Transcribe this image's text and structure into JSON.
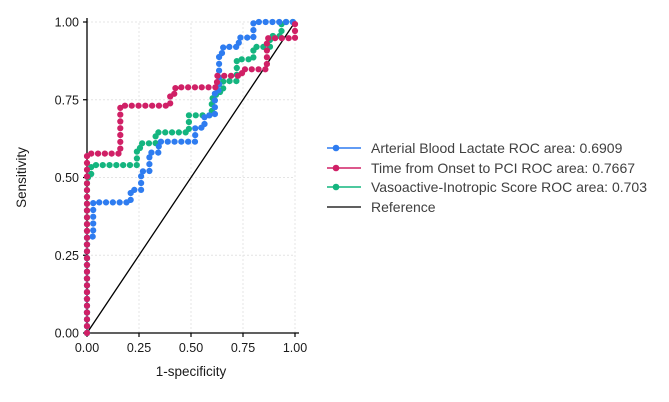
{
  "figure": {
    "background": "#ffffff",
    "text_color": "#404040",
    "axis_color": "#000000",
    "grid_color": "#e4e4e4"
  },
  "chart_data": {
    "type": "line",
    "subtype": "roc_step_curves",
    "title": "",
    "xlabel": "1-specificity",
    "ylabel": "Sensitivity",
    "xlim": [
      0,
      1
    ],
    "ylim": [
      0,
      1
    ],
    "xtick_values": [
      0,
      0.25,
      0.5,
      0.75,
      1
    ],
    "ytick_values": [
      0,
      0.25,
      0.5,
      0.75,
      1
    ],
    "xtick_labels": [
      "0.00",
      "0.25",
      "0.50",
      "0.75",
      "1.00"
    ],
    "ytick_labels": [
      "0.00",
      "0.25",
      "0.50",
      "0.75",
      "1.00"
    ],
    "grid": true,
    "legend_position": "right",
    "marker_style": "dotted-step-line",
    "series": [
      {
        "name": "Arterial Blood Lactate",
        "roc_area": 0.6909,
        "color": "#2E7CF0",
        "points": [
          [
            0,
            0
          ],
          [
            0,
            0.31
          ],
          [
            0.03,
            0.31
          ],
          [
            0.03,
            0.42
          ],
          [
            0.21,
            0.42
          ],
          [
            0.21,
            0.46
          ],
          [
            0.26,
            0.46
          ],
          [
            0.26,
            0.52
          ],
          [
            0.3,
            0.52
          ],
          [
            0.3,
            0.58
          ],
          [
            0.345,
            0.58
          ],
          [
            0.345,
            0.615
          ],
          [
            0.52,
            0.615
          ],
          [
            0.52,
            0.66
          ],
          [
            0.565,
            0.66
          ],
          [
            0.565,
            0.7
          ],
          [
            0.615,
            0.7
          ],
          [
            0.615,
            0.78
          ],
          [
            0.635,
            0.78
          ],
          [
            0.635,
            0.9
          ],
          [
            0.655,
            0.9
          ],
          [
            0.655,
            0.92
          ],
          [
            0.73,
            0.92
          ],
          [
            0.73,
            0.95
          ],
          [
            0.8,
            0.95
          ],
          [
            0.8,
            1
          ],
          [
            1,
            1
          ]
        ]
      },
      {
        "name": "Time from Onset to PCI",
        "roc_area": 0.7667,
        "color": "#D02066",
        "points": [
          [
            0,
            0
          ],
          [
            0,
            0.577
          ],
          [
            0.16,
            0.577
          ],
          [
            0.16,
            0.731
          ],
          [
            0.4,
            0.731
          ],
          [
            0.4,
            0.769
          ],
          [
            0.425,
            0.769
          ],
          [
            0.425,
            0.79
          ],
          [
            0.625,
            0.79
          ],
          [
            0.625,
            0.827
          ],
          [
            0.745,
            0.827
          ],
          [
            0.745,
            0.848
          ],
          [
            0.865,
            0.848
          ],
          [
            0.865,
            0.948
          ],
          [
            1,
            0.948
          ],
          [
            1,
            1
          ]
        ]
      },
      {
        "name": "Vasoactive-Inotropic Score",
        "roc_area": 0.703,
        "color": "#14B57F",
        "points": [
          [
            0,
            0
          ],
          [
            0,
            0.5
          ],
          [
            0.02,
            0.5
          ],
          [
            0.02,
            0.54
          ],
          [
            0.24,
            0.54
          ],
          [
            0.24,
            0.585
          ],
          [
            0.255,
            0.585
          ],
          [
            0.255,
            0.61
          ],
          [
            0.33,
            0.61
          ],
          [
            0.33,
            0.645
          ],
          [
            0.49,
            0.645
          ],
          [
            0.49,
            0.7
          ],
          [
            0.6,
            0.7
          ],
          [
            0.6,
            0.755
          ],
          [
            0.62,
            0.755
          ],
          [
            0.62,
            0.775
          ],
          [
            0.655,
            0.775
          ],
          [
            0.655,
            0.81
          ],
          [
            0.72,
            0.81
          ],
          [
            0.72,
            0.88
          ],
          [
            0.8,
            0.88
          ],
          [
            0.8,
            0.92
          ],
          [
            0.88,
            0.92
          ],
          [
            0.88,
            0.955
          ],
          [
            0.935,
            0.955
          ],
          [
            0.935,
            1
          ],
          [
            1,
            1
          ]
        ]
      }
    ],
    "reference": {
      "name": "Reference",
      "color": "#000000",
      "points": [
        [
          0,
          0
        ],
        [
          1,
          1
        ]
      ]
    }
  },
  "legend": {
    "items": [
      {
        "label": "Arterial Blood Lactate ROC area: 0.6909",
        "color": "#2E7CF0",
        "marker": "line-dot"
      },
      {
        "label": "Time from Onset to PCI ROC area: 0.7667",
        "color": "#D02066",
        "marker": "line-dot"
      },
      {
        "label": "Vasoactive-Inotropic Score ROC area: 0.703",
        "color": "#14B57F",
        "marker": "line-dot"
      },
      {
        "label": "Reference",
        "color": "#000000",
        "marker": "line"
      }
    ]
  }
}
